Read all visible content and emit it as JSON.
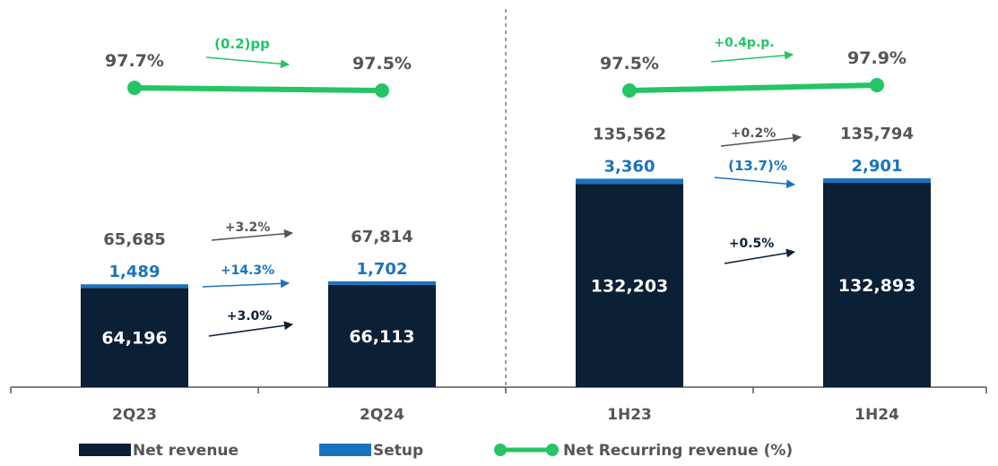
{
  "colors": {
    "net_revenue": "#0b1f35",
    "setup": "#1a73c0",
    "recurring": "#25c464",
    "total_text": "#555555",
    "growth_total": "#555555",
    "growth_setup": "#1a73c0",
    "growth_net": "#0b1f35",
    "growth_recurring": "#25c464",
    "axis": "#555555"
  },
  "chart_data": {
    "type": "bar",
    "stacked": true,
    "categories": [
      "2Q23",
      "2Q24",
      "1H23",
      "1H24"
    ],
    "groups": [
      [
        "2Q23",
        "2Q24"
      ],
      [
        "1H23",
        "1H24"
      ]
    ],
    "series": [
      {
        "name": "Net revenue",
        "values": [
          64196,
          66113,
          132203,
          132893
        ],
        "labels": [
          "64,196",
          "66,113",
          "132,203",
          "132,893"
        ]
      },
      {
        "name": "Setup",
        "values": [
          1489,
          1702,
          3360,
          2901
        ],
        "labels": [
          "1,489",
          "1,702",
          "3,360",
          "2,901"
        ]
      }
    ],
    "totals": {
      "values": [
        65685,
        67814,
        135562,
        135794
      ],
      "labels": [
        "65,685",
        "67,814",
        "135,562",
        "135,794"
      ]
    },
    "line_series": {
      "name": "Net Recurring revenue (%)",
      "values": [
        97.7,
        97.5,
        97.5,
        97.9
      ],
      "labels": [
        "97.7%",
        "97.5%",
        "97.5%",
        "97.9%"
      ]
    },
    "growth": [
      {
        "group": 0,
        "total": "+3.2%",
        "setup": "+14.3%",
        "net": "+3.0%",
        "recurring": "(0.2)pp"
      },
      {
        "group": 1,
        "total": "+0.2%",
        "setup": "(13.7)%",
        "net": "+0.5%",
        "recurring": "+0.4p.p."
      }
    ],
    "legend": {
      "position": "bottom",
      "items": [
        "Net revenue",
        "Setup",
        "Net Recurring revenue (%)"
      ]
    }
  }
}
